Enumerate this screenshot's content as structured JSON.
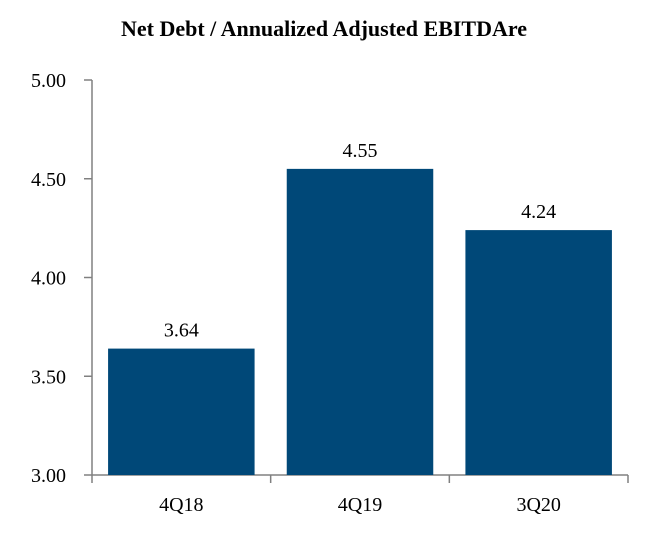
{
  "chart_data": {
    "type": "bar",
    "title": "Net Debt / Annualized Adjusted EBITDAre",
    "xlabel": "",
    "ylabel": "",
    "categories": [
      "4Q18",
      "4Q19",
      "3Q20"
    ],
    "values": [
      3.64,
      4.55,
      4.24
    ],
    "data_labels": [
      "3.64",
      "4.55",
      "4.24"
    ],
    "ylim": [
      3.0,
      5.0
    ],
    "yticks": [
      3.0,
      3.5,
      4.0,
      4.5,
      5.0
    ],
    "ytick_labels": [
      "3.00",
      "3.50",
      "4.00",
      "4.50",
      "5.00"
    ],
    "grid": false,
    "legend": "none",
    "bar_color": "#004878"
  }
}
